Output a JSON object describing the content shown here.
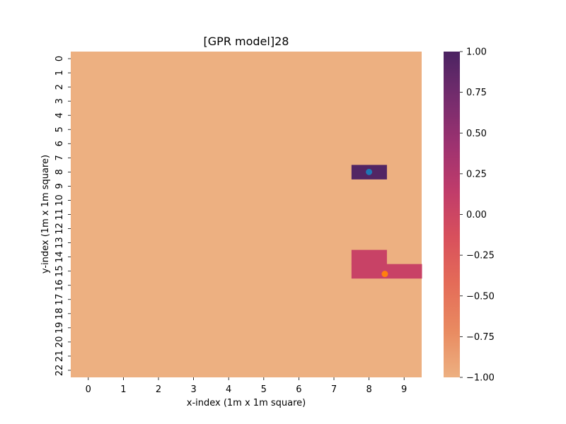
{
  "chart_data": {
    "type": "heatmap",
    "title": "[GPR model]28",
    "xlabel": "x-index (1m x 1m square)",
    "ylabel": "y-index (1m x 1m square)",
    "x_ticks": [
      "0",
      "1",
      "2",
      "3",
      "4",
      "5",
      "6",
      "7",
      "8",
      "9"
    ],
    "y_ticks": [
      "0",
      "1",
      "2",
      "3",
      "4",
      "5",
      "6",
      "7",
      "8",
      "9",
      "10",
      "11",
      "12",
      "13",
      "14",
      "15",
      "16",
      "17",
      "18",
      "19",
      "20",
      "21",
      "22"
    ],
    "value_range": [
      -1.0,
      1.0
    ],
    "background_value": -1.0,
    "cells": [
      {
        "x": 8,
        "y": 8,
        "value": 0.95
      },
      {
        "x": 8,
        "y": 14,
        "value": 0.05
      },
      {
        "x": 8,
        "y": 15,
        "value": 0.05
      },
      {
        "x": 9,
        "y": 15,
        "value": 0.05
      }
    ],
    "points": [
      {
        "name": "blue-marker",
        "x": 8.0,
        "y": 8.0,
        "color": "#1f77b4"
      },
      {
        "name": "orange-marker",
        "x": 8.45,
        "y": 15.2,
        "color": "#ff7f0e"
      }
    ],
    "colorbar": {
      "ticks": [
        "1.00",
        "0.75",
        "0.50",
        "0.25",
        "0.00",
        "−0.25",
        "−0.50",
        "−0.75",
        "−1.00"
      ],
      "tick_values": [
        1.0,
        0.75,
        0.5,
        0.25,
        0.0,
        -0.25,
        -0.5,
        -0.75,
        -1.0
      ],
      "colormap": "flare"
    },
    "grid": false
  }
}
